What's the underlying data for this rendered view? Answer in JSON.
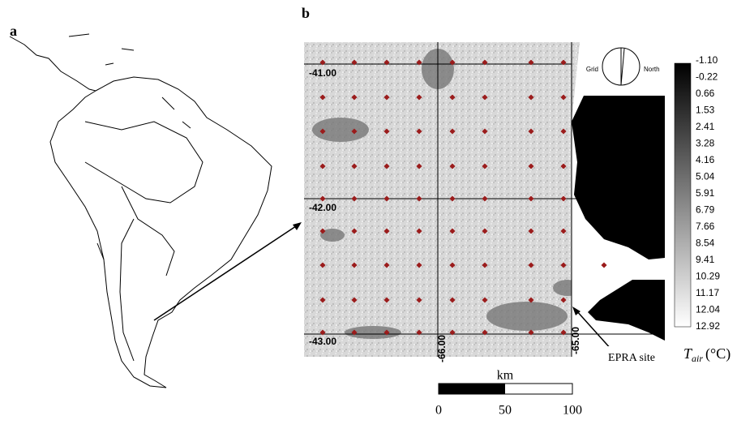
{
  "panel_a": {
    "label": "a"
  },
  "panel_b": {
    "label": "b",
    "lat_labels": [
      "-41.00",
      "-42.00",
      "-43.00"
    ],
    "lon_labels": [
      "-66.00",
      "-65.00"
    ],
    "compass": {
      "left": "Grid",
      "right": "North"
    },
    "site_label": "EPRA site",
    "colorbar": {
      "labels": [
        "-1.10",
        "-0.22",
        "0.66",
        "1.53",
        "2.41",
        "3.28",
        "4.16",
        "5.04",
        "5.91",
        "6.79",
        "7.66",
        "8.54",
        "9.41",
        "10.29",
        "11.17",
        "12.04",
        "12.92"
      ],
      "title_main": "T",
      "title_sub": "air",
      "title_unit": "(°C)"
    },
    "scale_bar": {
      "unit": "km",
      "labels": [
        "0",
        "50",
        "100"
      ]
    }
  }
}
